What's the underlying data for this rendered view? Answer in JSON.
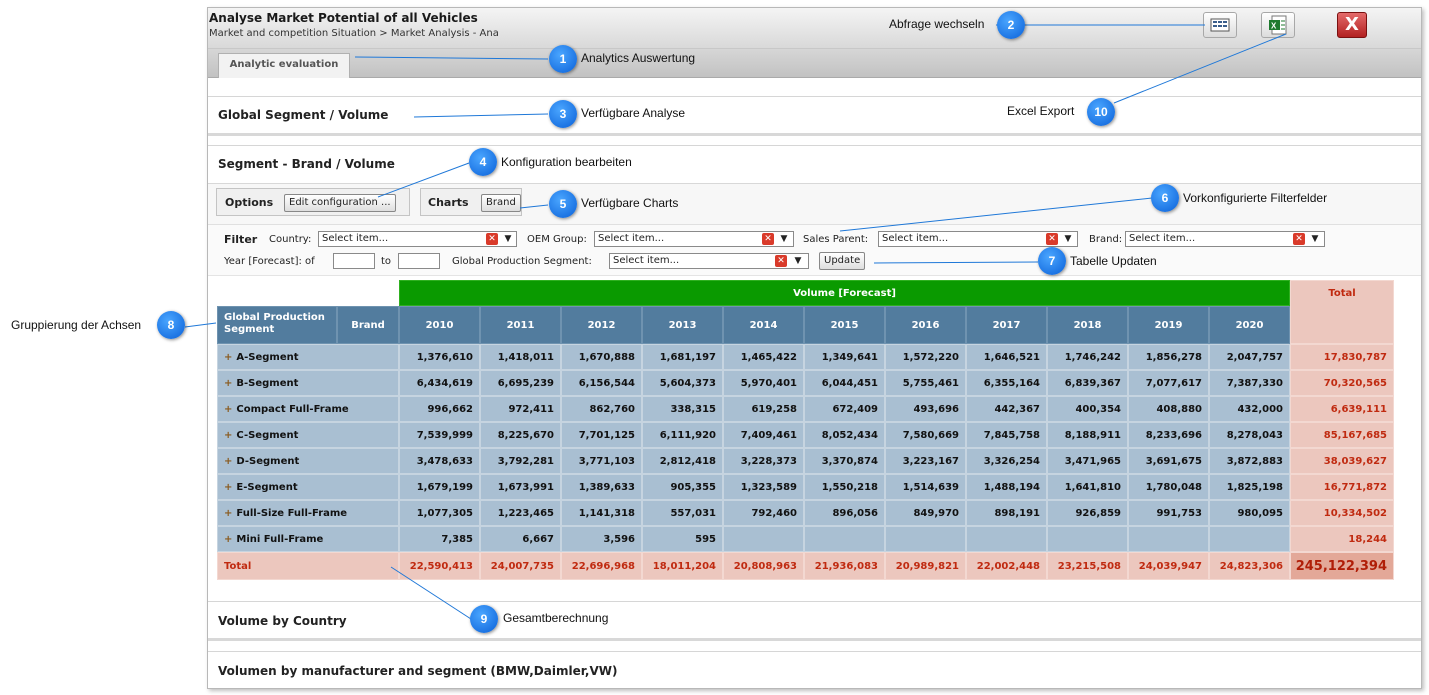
{
  "app": {
    "title": "Analyse Market Potential of all Vehicles",
    "breadcrumb": "Market and competition Situation > Market Analysis - Ana",
    "close_label": "X"
  },
  "tabs": [
    {
      "label": "Analytic evaluation"
    }
  ],
  "sections": {
    "global_segment": "Global Segment / Volume",
    "segment_brand": "Segment - Brand / Volume",
    "volume_by_country": "Volume by Country",
    "volumen_manufacturer": "Volumen by manufacturer and segment (BMW,Daimler,VW)"
  },
  "options": {
    "label": "Options",
    "edit_config_button": "Edit configuration ..."
  },
  "charts": {
    "label": "Charts",
    "brand_button": "Brand"
  },
  "filter": {
    "label": "Filter",
    "country_label": "Country:",
    "country_value": "Select item...",
    "oem_group_label": "OEM Group:",
    "oem_group_value": "Select item...",
    "sales_parent_label": "Sales Parent:",
    "sales_parent_value": "Select item...",
    "brand_label": "Brand:",
    "brand_value": "Select item...",
    "year_label": "Year [Forecast]: of",
    "year_from": "",
    "to_label": "to",
    "year_to": "",
    "gps_label": "Global Production Segment:",
    "gps_value": "Select item...",
    "update_button": "Update"
  },
  "table": {
    "measure_header": "Volume [Forecast]",
    "total_header": "Total",
    "group_header": "Global Production Segment",
    "brand_header": "Brand",
    "years": [
      "2010",
      "2011",
      "2012",
      "2013",
      "2014",
      "2015",
      "2016",
      "2017",
      "2018",
      "2019",
      "2020"
    ],
    "expand_symbol": "+",
    "rows": [
      {
        "label": "A-Segment",
        "values": [
          "1,376,610",
          "1,418,011",
          "1,670,888",
          "1,681,197",
          "1,465,422",
          "1,349,641",
          "1,572,220",
          "1,646,521",
          "1,746,242",
          "1,856,278",
          "2,047,757"
        ],
        "total": "17,830,787"
      },
      {
        "label": "B-Segment",
        "values": [
          "6,434,619",
          "6,695,239",
          "6,156,544",
          "5,604,373",
          "5,970,401",
          "6,044,451",
          "5,755,461",
          "6,355,164",
          "6,839,367",
          "7,077,617",
          "7,387,330"
        ],
        "total": "70,320,565"
      },
      {
        "label": "Compact Full-Frame",
        "values": [
          "996,662",
          "972,411",
          "862,760",
          "338,315",
          "619,258",
          "672,409",
          "493,696",
          "442,367",
          "400,354",
          "408,880",
          "432,000"
        ],
        "total": "6,639,111"
      },
      {
        "label": "C-Segment",
        "values": [
          "7,539,999",
          "8,225,670",
          "7,701,125",
          "6,111,920",
          "7,409,461",
          "8,052,434",
          "7,580,669",
          "7,845,758",
          "8,188,911",
          "8,233,696",
          "8,278,043"
        ],
        "total": "85,167,685"
      },
      {
        "label": "D-Segment",
        "values": [
          "3,478,633",
          "3,792,281",
          "3,771,103",
          "2,812,418",
          "3,228,373",
          "3,370,874",
          "3,223,167",
          "3,326,254",
          "3,471,965",
          "3,691,675",
          "3,872,883"
        ],
        "total": "38,039,627"
      },
      {
        "label": "E-Segment",
        "values": [
          "1,679,199",
          "1,673,991",
          "1,389,633",
          "905,355",
          "1,323,589",
          "1,550,218",
          "1,514,639",
          "1,488,194",
          "1,641,810",
          "1,780,048",
          "1,825,198"
        ],
        "total": "16,771,872"
      },
      {
        "label": "Full-Size Full-Frame",
        "values": [
          "1,077,305",
          "1,223,465",
          "1,141,318",
          "557,031",
          "792,460",
          "896,056",
          "849,970",
          "898,191",
          "926,859",
          "991,753",
          "980,095"
        ],
        "total": "10,334,502"
      },
      {
        "label": "Mini Full-Frame",
        "values": [
          "7,385",
          "6,667",
          "3,596",
          "595",
          "",
          "",
          "",
          "",
          "",
          "",
          ""
        ],
        "total": "18,244"
      }
    ],
    "total_row": {
      "label": "Total",
      "values": [
        "22,590,413",
        "24,007,735",
        "22,696,968",
        "18,011,204",
        "20,808,963",
        "21,936,083",
        "20,989,821",
        "22,002,448",
        "23,215,508",
        "24,039,947",
        "24,823,306"
      ],
      "total": "245,122,394"
    }
  },
  "callouts": [
    {
      "number": "1",
      "text": "Analytics  Auswertung"
    },
    {
      "number": "2",
      "text": "Abfrage wechseln"
    },
    {
      "number": "3",
      "text": "Verfügbare Analyse"
    },
    {
      "number": "4",
      "text": "Konfiguration bearbeiten"
    },
    {
      "number": "5",
      "text": "Verfügbare Charts"
    },
    {
      "number": "6",
      "text": "Vorkonfigurierte Filterfelder"
    },
    {
      "number": "7",
      "text": "Tabelle Updaten"
    },
    {
      "number": "8",
      "text": "Gruppierung der Achsen"
    },
    {
      "number": "9",
      "text": "Gesamtberechnung"
    },
    {
      "number": "10",
      "text": "Excel Export"
    }
  ],
  "colors": {
    "header_blue": "#527c9e",
    "cell_blue": "#a9bfd2",
    "forecast_green": "#0a9a00",
    "total_pink": "#ecc7be",
    "total_text": "#c02a10",
    "callout_blue": "#0a60d8"
  },
  "icons": {
    "switch_query": "grid-view-icon",
    "excel_export": "excel-icon",
    "close": "close-icon",
    "clear": "clear-x-icon",
    "dropdown": "chevron-down-icon",
    "expand": "expand-plus-icon"
  }
}
